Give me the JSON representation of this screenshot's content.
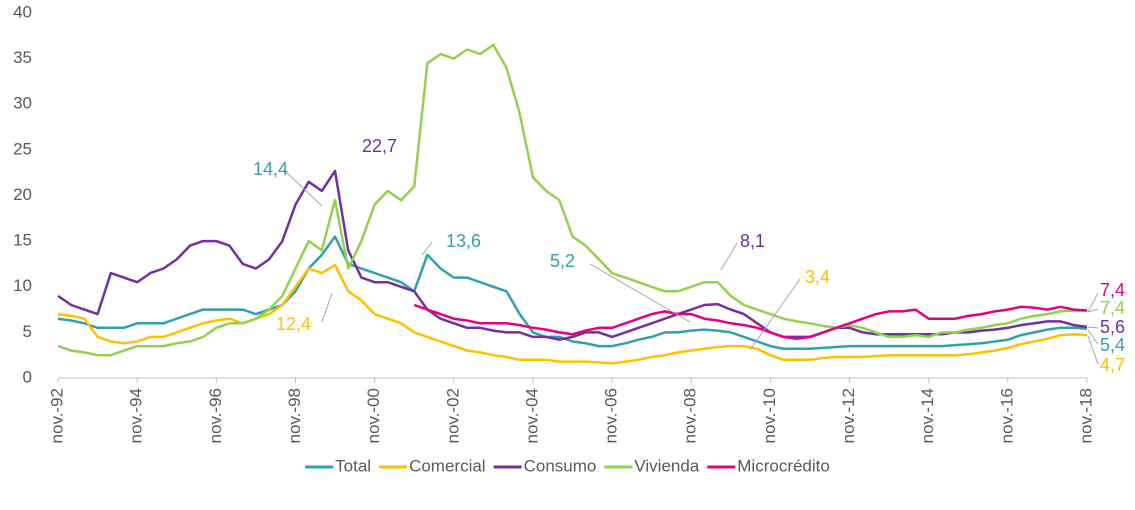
{
  "chart_data": {
    "type": "line",
    "categories": [
      "nov.-92",
      null,
      null,
      null,
      null,
      null,
      "nov.-94",
      null,
      null,
      null,
      null,
      null,
      "nov.-96",
      null,
      null,
      null,
      null,
      null,
      "nov.-98",
      null,
      null,
      null,
      null,
      null,
      "nov.-00",
      null,
      null,
      null,
      null,
      null,
      "nov.-02",
      null,
      null,
      null,
      null,
      null,
      "nov.-04",
      null,
      null,
      null,
      null,
      null,
      "nov.-06",
      null,
      null,
      null,
      null,
      null,
      "nov.-08",
      null,
      null,
      null,
      null,
      null,
      "nov.-10",
      null,
      null,
      null,
      null,
      null,
      "nov.-12",
      null,
      null,
      null,
      null,
      null,
      "nov.-14",
      null,
      null,
      null,
      null,
      null,
      "nov.-16",
      null,
      null,
      null,
      null,
      null,
      "nov.-18"
    ],
    "ylim": [
      0,
      40
    ],
    "yticks": [
      0,
      5,
      10,
      15,
      20,
      25,
      30,
      35,
      40
    ],
    "grid": false,
    "legend": "bottom",
    "series": [
      {
        "name": "Total",
        "color": "#31a0ad",
        "values": [
          6.5,
          6.3,
          6,
          5.5,
          5.5,
          5.5,
          6,
          6,
          6,
          6.5,
          7,
          7.5,
          7.5,
          7.5,
          7.5,
          7,
          7.5,
          8,
          9.5,
          12,
          13.5,
          15.5,
          12.5,
          12,
          11.5,
          11,
          10.5,
          9.5,
          13.5,
          12,
          11,
          11,
          10.5,
          10,
          9.5,
          7,
          5,
          4.5,
          4.5,
          4,
          3.8,
          3.5,
          3.5,
          3.8,
          4.2,
          4.5,
          5,
          5,
          5.2,
          5.3,
          5.2,
          5,
          4.5,
          4,
          3.5,
          3.2,
          3.2,
          3.2,
          3.3,
          3.4,
          3.5,
          3.5,
          3.5,
          3.5,
          3.5,
          3.5,
          3.5,
          3.5,
          3.6,
          3.7,
          3.8,
          4,
          4.2,
          4.7,
          5,
          5.3,
          5.5,
          5.5,
          5.4
        ]
      },
      {
        "name": "Comercial",
        "color": "#ffc000",
        "values": [
          7,
          6.8,
          6.5,
          4.5,
          4,
          3.8,
          4,
          4.5,
          4.5,
          5,
          5.5,
          6,
          6.3,
          6.5,
          6,
          6.5,
          7,
          8,
          10,
          12,
          11.5,
          12.4,
          9.5,
          8.5,
          7,
          6.5,
          6,
          5,
          4.5,
          4,
          3.5,
          3,
          2.8,
          2.5,
          2.3,
          2,
          2,
          2,
          1.8,
          1.8,
          1.8,
          1.7,
          1.6,
          1.8,
          2,
          2.3,
          2.5,
          2.8,
          3,
          3.2,
          3.4,
          3.5,
          3.5,
          3.2,
          2.5,
          2,
          2,
          2,
          2.2,
          2.3,
          2.3,
          2.3,
          2.4,
          2.5,
          2.5,
          2.5,
          2.5,
          2.5,
          2.5,
          2.6,
          2.8,
          3,
          3.3,
          3.7,
          4,
          4.3,
          4.7,
          4.8,
          4.7
        ]
      },
      {
        "name": "Consumo",
        "color": "#7030a0",
        "values": [
          9,
          8,
          7.5,
          7,
          11.5,
          11,
          10.5,
          11.5,
          12,
          13,
          14.5,
          15,
          15,
          14.5,
          12.5,
          12,
          13,
          15,
          19,
          21.5,
          20.5,
          22.7,
          14,
          11,
          10.5,
          10.5,
          10,
          9.5,
          7.5,
          6.5,
          6,
          5.5,
          5.5,
          5.2,
          5,
          5,
          4.5,
          4.5,
          4.2,
          4.5,
          5,
          5,
          4.5,
          5,
          5.5,
          6,
          6.5,
          7,
          7.5,
          8,
          8.1,
          7.5,
          7,
          6,
          5,
          4.5,
          4.5,
          4.5,
          5,
          5.5,
          5.5,
          5,
          4.8,
          4.8,
          4.8,
          4.8,
          4.8,
          4.8,
          5,
          5,
          5.2,
          5.3,
          5.5,
          5.8,
          6,
          6.2,
          6.2,
          5.8,
          5.6
        ]
      },
      {
        "name": "Vivienda",
        "color": "#92d050",
        "values": [
          3.5,
          3,
          2.8,
          2.5,
          2.5,
          3,
          3.5,
          3.5,
          3.5,
          3.8,
          4,
          4.5,
          5.5,
          6,
          6,
          6.5,
          7.5,
          9,
          12,
          15,
          14,
          19.5,
          12,
          15,
          19,
          20.5,
          19.5,
          21,
          34.5,
          35.5,
          35,
          36,
          35.5,
          36.5,
          34,
          29,
          22,
          20.5,
          19.5,
          15.5,
          14.5,
          13,
          11.5,
          11,
          10.5,
          10,
          9.5,
          9.5,
          10,
          10.5,
          10.5,
          9,
          8,
          7.5,
          7,
          6.5,
          6.2,
          6,
          5.7,
          5.5,
          5.8,
          5.5,
          5,
          4.5,
          4.5,
          4.7,
          4.5,
          5,
          5,
          5.3,
          5.5,
          5.8,
          6,
          6.5,
          6.8,
          7,
          7.3,
          7.4,
          7.4
        ]
      },
      {
        "name": "Microcrédito",
        "color": "#e6007e",
        "values": [
          null,
          null,
          null,
          null,
          null,
          null,
          null,
          null,
          null,
          null,
          null,
          null,
          null,
          null,
          null,
          null,
          null,
          null,
          null,
          null,
          null,
          null,
          null,
          null,
          null,
          null,
          null,
          8,
          7.5,
          7,
          6.5,
          6.3,
          6,
          6,
          6,
          5.8,
          5.5,
          5.3,
          5,
          4.8,
          5.2,
          5.5,
          5.5,
          6,
          6.5,
          7,
          7.3,
          7,
          7,
          6.5,
          6.3,
          6,
          5.8,
          5.5,
          5,
          4.5,
          4.3,
          4.5,
          5,
          5.5,
          6,
          6.5,
          7,
          7.3,
          7.3,
          7.5,
          6.5,
          6.5,
          6.5,
          6.8,
          7,
          7.3,
          7.5,
          7.8,
          7.7,
          7.5,
          7.8,
          7.5,
          7.4
        ]
      }
    ],
    "annotations": [
      {
        "text": "14,4"
      },
      {
        "text": "22,7"
      },
      {
        "text": "13,6"
      },
      {
        "text": "5,2"
      },
      {
        "text": "8,1"
      },
      {
        "text": "3,4"
      },
      {
        "text": "12,4"
      },
      {
        "text": "7,4"
      },
      {
        "text": "7,4"
      },
      {
        "text": "5,6"
      },
      {
        "text": "5,4"
      },
      {
        "text": "4,7"
      }
    ]
  }
}
